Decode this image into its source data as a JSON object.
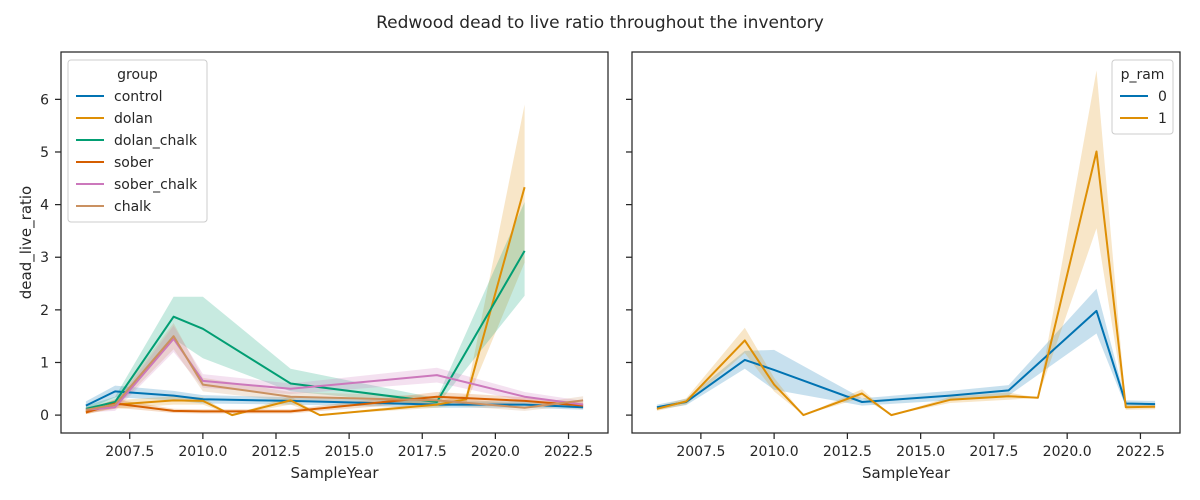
{
  "figure": {
    "title": "Redwood dead to live ratio throughout the inventory"
  },
  "chart_data": [
    {
      "type": "line",
      "xlabel": "SampleYear",
      "ylabel": "dead_live_ratio",
      "xlim": [
        2005.15,
        2023.85
      ],
      "ylim": [
        -0.34,
        6.9
      ],
      "xticks": [
        2007.5,
        2010.0,
        2012.5,
        2015.0,
        2017.5,
        2020.0,
        2022.5
      ],
      "xtick_labels": [
        "2007.5",
        "2010.0",
        "2012.5",
        "2015.0",
        "2017.5",
        "2020.0",
        "2022.5"
      ],
      "yticks": [
        0,
        1,
        2,
        3,
        4,
        5,
        6
      ],
      "ytick_labels": [
        "0",
        "1",
        "2",
        "3",
        "4",
        "5",
        "6"
      ],
      "legend": {
        "title": "group",
        "position": "top-left"
      },
      "series": [
        {
          "name": "control",
          "color": "#0173b2",
          "x": [
            2006,
            2007,
            2009,
            2010,
            2013,
            2018,
            2021,
            2023
          ],
          "y": [
            0.18,
            0.45,
            0.37,
            0.3,
            0.27,
            0.2,
            0.2,
            0.15
          ],
          "lower": [
            0.1,
            0.34,
            0.28,
            0.22,
            0.2,
            0.14,
            0.14,
            0.1
          ],
          "upper": [
            0.26,
            0.56,
            0.46,
            0.38,
            0.34,
            0.26,
            0.26,
            0.2
          ]
        },
        {
          "name": "dolan",
          "color": "#de8f05",
          "x": [
            2006,
            2007,
            2009,
            2010,
            2011,
            2013,
            2014,
            2018,
            2019,
            2021
          ],
          "y": [
            0.07,
            0.2,
            0.28,
            0.27,
            0.0,
            0.28,
            0.0,
            0.2,
            0.3,
            4.33
          ],
          "lower": [
            0.02,
            0.12,
            0.2,
            0.2,
            0.0,
            0.2,
            0.0,
            0.14,
            0.22,
            2.9
          ],
          "upper": [
            0.12,
            0.28,
            0.36,
            0.34,
            0.0,
            0.36,
            0.0,
            0.26,
            0.38,
            5.9
          ]
        },
        {
          "name": "dolan_chalk",
          "color": "#029e73",
          "x": [
            2006,
            2007,
            2009,
            2010,
            2013,
            2018,
            2021
          ],
          "y": [
            0.12,
            0.25,
            1.87,
            1.64,
            0.6,
            0.25,
            3.12
          ],
          "lower": [
            0.06,
            0.15,
            1.45,
            1.08,
            0.45,
            0.18,
            2.27
          ],
          "upper": [
            0.18,
            0.35,
            2.25,
            2.25,
            0.88,
            0.32,
            4.05
          ]
        },
        {
          "name": "sober",
          "color": "#d55e00",
          "x": [
            2006,
            2007,
            2009,
            2010,
            2013,
            2018,
            2021,
            2023
          ],
          "y": [
            0.05,
            0.22,
            0.08,
            0.07,
            0.07,
            0.35,
            0.27,
            0.18
          ],
          "lower": [
            0.02,
            0.14,
            0.04,
            0.03,
            0.03,
            0.26,
            0.2,
            0.12
          ],
          "upper": [
            0.08,
            0.3,
            0.12,
            0.11,
            0.11,
            0.44,
            0.34,
            0.24
          ]
        },
        {
          "name": "sober_chalk",
          "color": "#cc78bc",
          "x": [
            2006,
            2007,
            2009,
            2010,
            2013,
            2018,
            2021,
            2023
          ],
          "y": [
            0.1,
            0.15,
            1.45,
            0.65,
            0.5,
            0.76,
            0.35,
            0.2
          ],
          "lower": [
            0.05,
            0.08,
            1.2,
            0.52,
            0.4,
            0.62,
            0.26,
            0.13
          ],
          "upper": [
            0.15,
            0.22,
            1.7,
            0.78,
            0.6,
            0.9,
            0.44,
            0.27
          ]
        },
        {
          "name": "chalk",
          "color": "#ca9161",
          "x": [
            2006,
            2007,
            2009,
            2010,
            2013,
            2018,
            2021,
            2023
          ],
          "y": [
            0.1,
            0.2,
            1.5,
            0.58,
            0.35,
            0.28,
            0.14,
            0.28
          ],
          "lower": [
            0.05,
            0.12,
            1.25,
            0.45,
            0.26,
            0.2,
            0.08,
            0.2
          ],
          "upper": [
            0.15,
            0.28,
            1.75,
            0.71,
            0.44,
            0.36,
            0.2,
            0.36
          ]
        }
      ]
    },
    {
      "type": "line",
      "xlabel": "SampleYear",
      "ylabel": "",
      "xlim": [
        2005.15,
        2023.85
      ],
      "ylim": [
        -0.34,
        6.9
      ],
      "xticks": [
        2007.5,
        2010.0,
        2012.5,
        2015.0,
        2017.5,
        2020.0,
        2022.5
      ],
      "xtick_labels": [
        "2007.5",
        "2010.0",
        "2012.5",
        "2015.0",
        "2017.5",
        "2020.0",
        "2022.5"
      ],
      "yticks": [
        0,
        1,
        2,
        3,
        4,
        5,
        6
      ],
      "ytick_labels": [],
      "legend": {
        "title": "p_ram",
        "position": "top-right"
      },
      "series": [
        {
          "name": "0",
          "color": "#0173b2",
          "x": [
            2006,
            2007,
            2009,
            2010,
            2013,
            2016,
            2018,
            2021,
            2022,
            2023
          ],
          "y": [
            0.15,
            0.25,
            1.05,
            0.86,
            0.25,
            0.37,
            0.47,
            1.98,
            0.22,
            0.21
          ],
          "lower": [
            0.1,
            0.19,
            0.88,
            0.48,
            0.18,
            0.28,
            0.37,
            1.55,
            0.16,
            0.15
          ],
          "upper": [
            0.2,
            0.31,
            1.22,
            1.24,
            0.32,
            0.46,
            0.57,
            2.4,
            0.28,
            0.27
          ]
        },
        {
          "name": "1",
          "color": "#de8f05",
          "x": [
            2006,
            2007,
            2009,
            2010,
            2011,
            2013,
            2014,
            2016,
            2018,
            2019,
            2021,
            2022,
            2023
          ],
          "y": [
            0.12,
            0.26,
            1.42,
            0.58,
            0.0,
            0.41,
            0.0,
            0.29,
            0.36,
            0.33,
            5.01,
            0.15,
            0.16
          ],
          "lower": [
            0.08,
            0.2,
            1.18,
            0.45,
            0.0,
            0.33,
            0.0,
            0.23,
            0.29,
            0.33,
            3.55,
            0.1,
            0.11
          ],
          "upper": [
            0.16,
            0.32,
            1.66,
            0.71,
            0.0,
            0.49,
            0.0,
            0.35,
            0.43,
            0.33,
            6.55,
            0.2,
            0.21
          ]
        }
      ]
    }
  ]
}
